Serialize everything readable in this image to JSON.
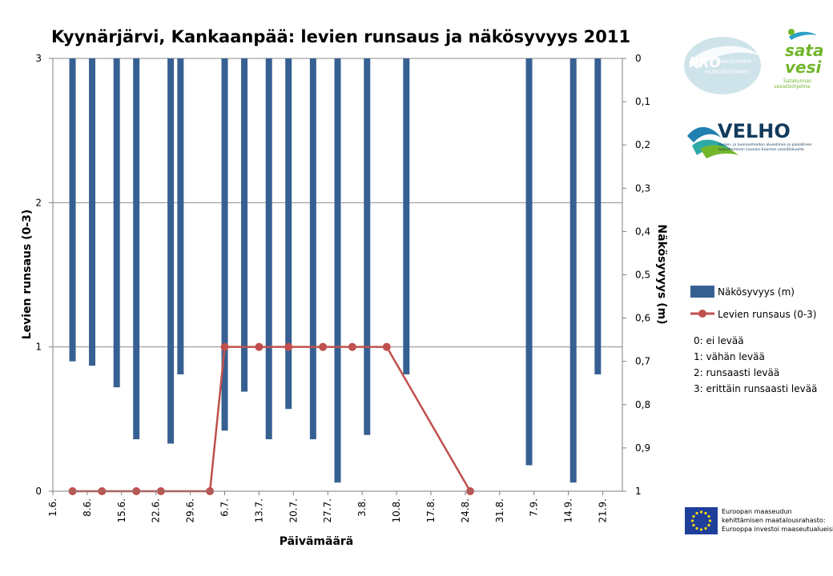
{
  "chart_data": {
    "type": "bar+line",
    "title": "Kyynärjärvi, Kankaanpää: levien runsaus ja näkösyvyys 2011",
    "xlabel": "Päivämäärä",
    "ylabel_left": "Levien runsaus (0-3)",
    "ylabel_right": "Näkösyvyys (m)",
    "x_ticks": [
      "1.6.",
      "8.6.",
      "15.6.",
      "22.6.",
      "29.6.",
      "6.7.",
      "13.7.",
      "20.7.",
      "27.7.",
      "3.8.",
      "10.8.",
      "17.8.",
      "24.8.",
      "31.8.",
      "7.9.",
      "14.9.",
      "21.9."
    ],
    "x_range": [
      "2011-06-01",
      "2011-09-25"
    ],
    "y_left_ticks": [
      "0",
      "1",
      "2",
      "3"
    ],
    "y_left_range": [
      0,
      3
    ],
    "y_right_ticks": [
      "0",
      "0,1",
      "0,2",
      "0,3",
      "0,4",
      "0,5",
      "0,6",
      "0,7",
      "0,8",
      "0,9",
      "1"
    ],
    "y_right_range": [
      0,
      1
    ],
    "y_right_inverted": true,
    "grid": true,
    "legend_position": "right",
    "series": [
      {
        "name": "Näkösyvyys (m)",
        "type": "bar",
        "axis": "right",
        "color": "#376092",
        "points": [
          {
            "date": "2011-06-05",
            "value": 0.7
          },
          {
            "date": "2011-06-09",
            "value": 0.71
          },
          {
            "date": "2011-06-14",
            "value": 0.76
          },
          {
            "date": "2011-06-18",
            "value": 0.88
          },
          {
            "date": "2011-06-25",
            "value": 0.89
          },
          {
            "date": "2011-06-27",
            "value": 0.73
          },
          {
            "date": "2011-07-06",
            "value": 0.86
          },
          {
            "date": "2011-07-10",
            "value": 0.77
          },
          {
            "date": "2011-07-15",
            "value": 0.88
          },
          {
            "date": "2011-07-19",
            "value": 0.81
          },
          {
            "date": "2011-07-24",
            "value": 0.88
          },
          {
            "date": "2011-07-29",
            "value": 0.98
          },
          {
            "date": "2011-08-04",
            "value": 0.87
          },
          {
            "date": "2011-08-12",
            "value": 0.73
          },
          {
            "date": "2011-09-06",
            "value": 0.94
          },
          {
            "date": "2011-09-15",
            "value": 0.98
          },
          {
            "date": "2011-09-20",
            "value": 0.73
          }
        ]
      },
      {
        "name": "Levien runsaus (0-3)",
        "type": "line",
        "axis": "left",
        "color": "#C0504D",
        "points": [
          {
            "date": "2011-06-05",
            "value": 0
          },
          {
            "date": "2011-06-11",
            "value": 0
          },
          {
            "date": "2011-06-18",
            "value": 0
          },
          {
            "date": "2011-06-23",
            "value": 0
          },
          {
            "date": "2011-07-03",
            "value": 0
          },
          {
            "date": "2011-07-06",
            "value": 1
          },
          {
            "date": "2011-07-13",
            "value": 1
          },
          {
            "date": "2011-07-19",
            "value": 1
          },
          {
            "date": "2011-07-26",
            "value": 1
          },
          {
            "date": "2011-08-01",
            "value": 1
          },
          {
            "date": "2011-08-08",
            "value": 1
          },
          {
            "date": "2011-08-25",
            "value": 0
          }
        ]
      }
    ],
    "notes": [
      "0: ei levää",
      "1: vähän levää",
      "2: runsaasti levää",
      "3: erittäin runsaasti levää"
    ]
  },
  "logos": {
    "pro_saaristomeri": [
      "PRO",
      "SAARISTOMERI",
      "SKÄRGÅRDSHAVET"
    ],
    "satavesi": [
      "sata",
      "vesi",
      "Satakunnan",
      "vesistöohjelma"
    ],
    "velho": [
      "VELHO",
      "Vesien- ja luonnonhoidon alueellinen ja paikallinen",
      "toteuttaminen Lounais-Suomen vesistöalueilla"
    ],
    "eu": [
      "Euroopan maaseudun",
      "kehittämisen maatalousrahasto:",
      "Eurooppa investoi maaseutualueisiin"
    ]
  }
}
